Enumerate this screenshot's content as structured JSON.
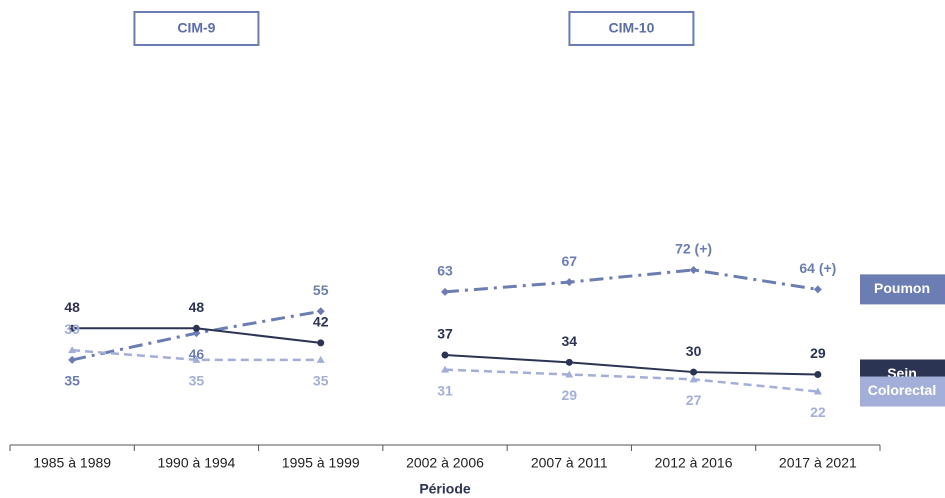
{
  "chart_data": {
    "type": "line",
    "panels": [
      {
        "title": "CIM-9",
        "categories": [
          "1985 à 1989",
          "1990 à 1994",
          "1995 à 1999"
        ]
      },
      {
        "title": "CIM-10",
        "categories": [
          "2002 à 2006",
          "2007 à 2011",
          "2012 à 2016",
          "2017 à 2021"
        ]
      }
    ],
    "x_label": "Période",
    "series": [
      {
        "name": "Poumon",
        "color": "#6b7db3",
        "values": [
          35,
          46,
          55,
          63,
          67,
          72,
          64
        ],
        "value_labels": [
          "35",
          "46",
          "55",
          "63",
          "67",
          "72 (+)",
          "64 (+)"
        ]
      },
      {
        "name": "Sein",
        "color": "#2b3452",
        "values": [
          48,
          48,
          42,
          37,
          34,
          30,
          29
        ]
      },
      {
        "name": "Colorectal",
        "color": "#a3afd8",
        "values": [
          39,
          35,
          35,
          31,
          29,
          27,
          22
        ]
      }
    ],
    "ylim": [
      0,
      160
    ]
  }
}
